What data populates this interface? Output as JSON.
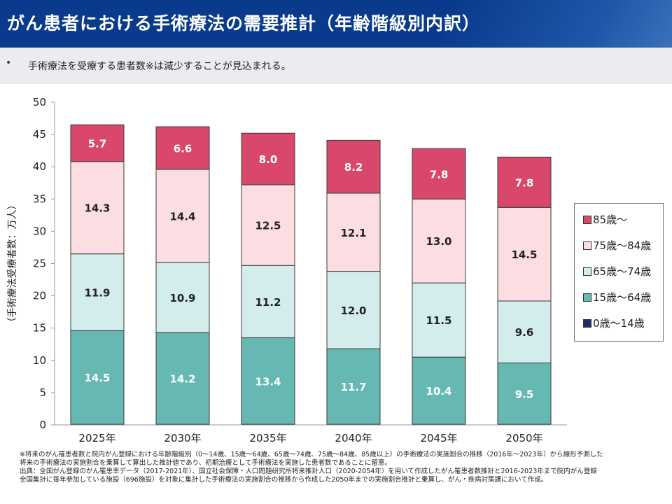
{
  "header": {
    "title": "がん患者における手術療法の需要推計（年齢階級別内訳）",
    "bullet": "•",
    "subtitle": "手術療法を受療する患者数※は減少することが見込まれる。"
  },
  "chart_data": {
    "type": "bar",
    "stacked": true,
    "categories": [
      "2025年",
      "2030年",
      "2035年",
      "2040年",
      "2045年",
      "2050年"
    ],
    "ylabel": "（手術療法受療者数：万人）",
    "ylim": [
      0,
      50
    ],
    "yticks": [
      0,
      5,
      10,
      15,
      20,
      25,
      30,
      35,
      40,
      45,
      50
    ],
    "grid": false,
    "legend_position": "right",
    "series": [
      {
        "name": "0歳～14歳",
        "color": "#1a2e6e",
        "label_color": "#ffffff",
        "values": [
          0.1,
          0.1,
          0.1,
          0.1,
          0.1,
          0.1
        ]
      },
      {
        "name": "15歳～64歳",
        "color": "#66b8b3",
        "label_color": "#ffffff",
        "values": [
          14.5,
          14.2,
          13.4,
          11.7,
          10.4,
          9.5
        ]
      },
      {
        "name": "65歳～74歳",
        "color": "#d3ecec",
        "label_color": "#222222",
        "values": [
          11.9,
          10.9,
          11.2,
          12.0,
          11.5,
          9.6
        ]
      },
      {
        "name": "75歳～84歳",
        "color": "#fcdee2",
        "label_color": "#222222",
        "values": [
          14.3,
          14.4,
          12.5,
          12.1,
          13.0,
          14.5
        ]
      },
      {
        "name": "85歳～",
        "color": "#d9486a",
        "label_color": "#ffffff",
        "values": [
          5.7,
          6.6,
          8.0,
          8.2,
          7.8,
          7.8
        ]
      }
    ]
  },
  "legend": {
    "items": [
      {
        "label": "85歳～",
        "color": "#d9486a"
      },
      {
        "label": "75歳～84歳",
        "color": "#fcdee2"
      },
      {
        "label": "65歳～74歳",
        "color": "#d3ecec"
      },
      {
        "label": "15歳～64歳",
        "color": "#66b8b3"
      },
      {
        "label": "0歳～14歳",
        "color": "#1a2e6e"
      }
    ]
  },
  "footnotes": [
    "※将来のがん罹患者数と院内がん登録における年齢階級別（0～14歳、15歳～64歳、65歳～74歳、75歳～84歳、85歳以上）の手術療法の実施割合の推移（2016年～2023年）から線形予測した",
    "将来の手術療法の実施割合を乗算して算出した推計値であり、初期治療として手術療法を実施した患者数であることに留意。",
    "出典：全国がん登録のがん罹患率データ（2017-2021年）、国立社会保障・人口問題研究所将来推計人口（2020-2054年）を用いて作成したがん罹患者数推計と2016-2023年まで院内がん登録",
    "全国集計に毎年参加している施設（696施設）を対象に集計した手術療法の実施割合の推移から作成した2050年までの実施割合推計と乗算し、がん・疾病対策課において作成。"
  ]
}
